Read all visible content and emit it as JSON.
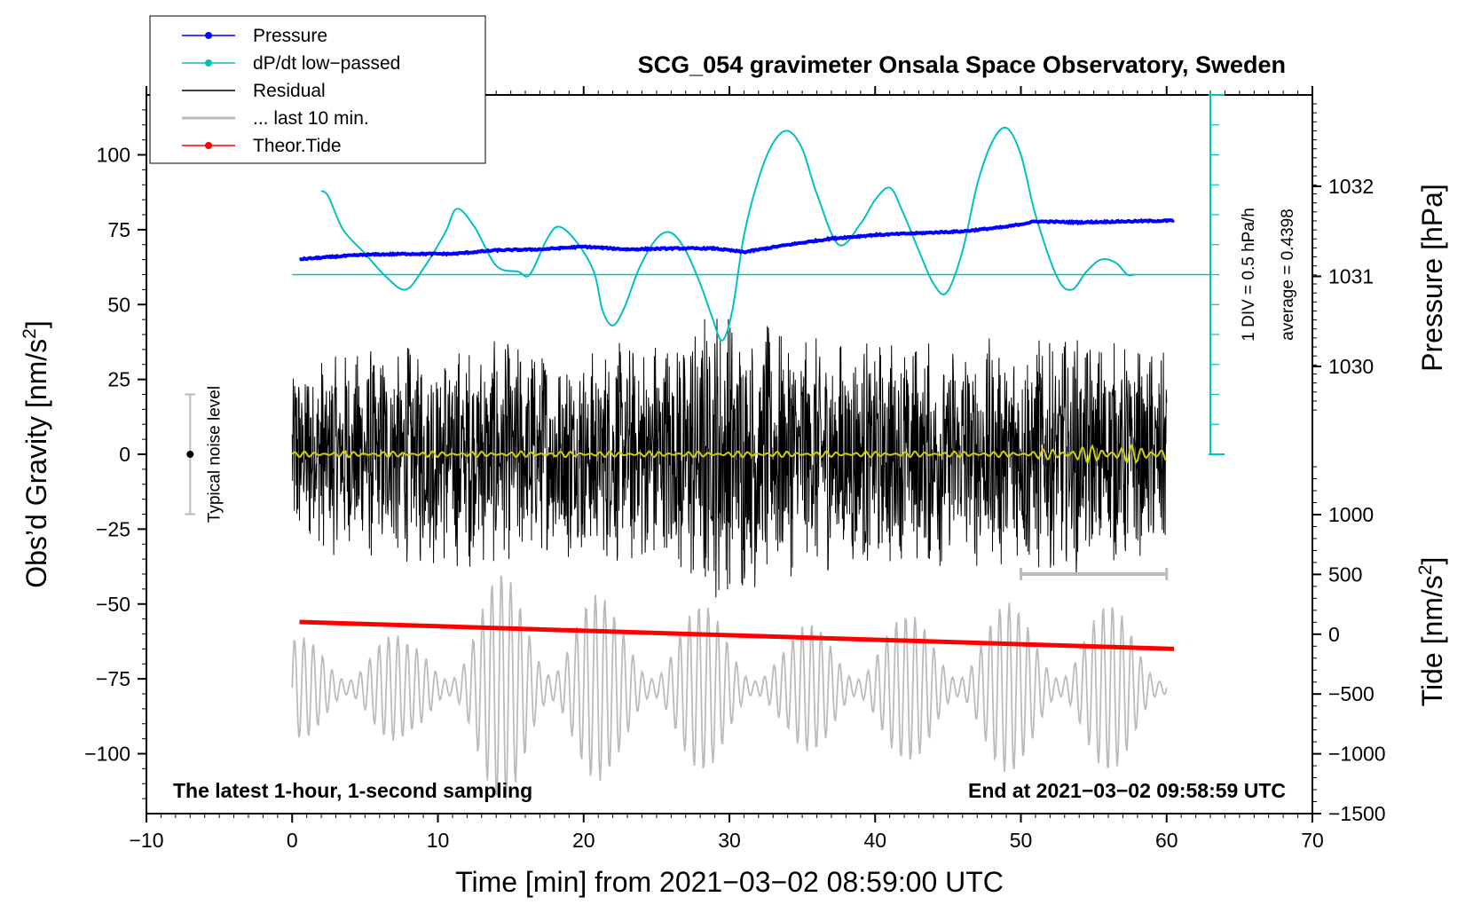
{
  "chart_data": {
    "type": "line",
    "title": "SCG_054 gravimeter Onsala Space Observatory, Sweden",
    "xlabel": "Time [min] from 2021−03−02 08:59:00 UTC",
    "ylabel_left": "Obs’d Gravity [nm/s",
    "ylabel_left_sup": "2",
    "ylabel_left_end": "]",
    "ylabel_right_pressure": "Pressure [hPa]",
    "ylabel_right_tide": "Tide [nm/s",
    "ylabel_right_tide_sup": "2",
    "ylabel_right_tide_end": "]",
    "xlim": [
      -10,
      70
    ],
    "ylim": [
      -120,
      120
    ],
    "pressure_ylim": [
      1029,
      1033
    ],
    "tide_ylim": [
      -1500,
      1500
    ],
    "x_ticks": [
      -10,
      0,
      10,
      20,
      30,
      40,
      50,
      60,
      70
    ],
    "x_tick_labels": [
      "−10",
      "0",
      "10",
      "20",
      "30",
      "40",
      "50",
      "60",
      "70"
    ],
    "y_ticks": [
      100,
      75,
      50,
      25,
      0,
      -25,
      -50,
      -75,
      -100
    ],
    "y_tick_labels": [
      "100",
      "75",
      "50",
      "25",
      "0",
      "−25",
      "−50",
      "−75",
      "−100"
    ],
    "pressure_ticks": [
      1032,
      1031,
      1030
    ],
    "pressure_tick_labels": [
      "1032",
      "1031",
      "1030"
    ],
    "tide_ticks": [
      1000,
      500,
      0,
      -500,
      -1000,
      -1500
    ],
    "tide_tick_labels": [
      "1000",
      "500",
      "0",
      "−500",
      "−1000",
      "−1500"
    ],
    "note_left": "The latest 1-hour, 1-second sampling",
    "note_right": "End at 2021−03−02 09:58:59 UTC",
    "noise": {
      "label": "Typical noise level",
      "x": -7,
      "center": 0,
      "half_range": 20
    },
    "scale_bar": {
      "line1": "1 DIV = 0.5 hPa/h",
      "line2": "average = 0.4398",
      "x": 63,
      "top_gravity": 120,
      "bottom_gravity": 0,
      "divisions": 12
    },
    "last10_bar": {
      "x_start": 50,
      "x_end": 60,
      "y": -40
    },
    "legend": [
      {
        "name": "Pressure",
        "color": "#0000ff",
        "marker": true
      },
      {
        "name": "dP/dt low−passed",
        "color": "#00c0c0",
        "marker": true
      },
      {
        "name": "Residual",
        "color": "#000000",
        "marker": false
      },
      {
        "name": "... last 10 min.",
        "color": "#bbbbbb",
        "marker": false
      },
      {
        "name": "Theor.Tide",
        "color": "#ff0000",
        "marker": true
      }
    ],
    "series": [
      {
        "name": "Pressure",
        "axis": "pressure",
        "color": "#0000ff",
        "x": [
          0.5,
          3,
          5,
          8,
          11,
          14,
          17,
          20,
          23,
          26,
          29,
          31,
          34,
          37,
          40,
          43,
          46,
          49,
          51,
          54,
          57,
          60.5
        ],
        "y": [
          1031.19,
          1031.22,
          1031.24,
          1031.25,
          1031.25,
          1031.29,
          1031.3,
          1031.33,
          1031.3,
          1031.31,
          1031.31,
          1031.27,
          1031.35,
          1031.42,
          1031.46,
          1031.48,
          1031.5,
          1031.55,
          1031.61,
          1031.6,
          1031.61,
          1031.62
        ]
      },
      {
        "name": "dP/dt low−passed",
        "axis": "gravity",
        "color": "#00c0c0",
        "x": [
          2,
          2.5,
          3.5,
          5,
          6.5,
          7.8,
          9,
          10.5,
          11.3,
          12.5,
          14,
          15.5,
          16.3,
          17.5,
          18.3,
          19.5,
          20.7,
          21.3,
          22,
          22.8,
          23.8,
          25,
          26,
          27,
          28,
          28.8,
          29.5,
          30.2,
          31,
          32,
          33,
          34,
          35,
          36,
          37.5,
          39,
          40,
          41,
          41.8,
          43,
          44,
          44.9,
          46,
          47,
          48,
          49,
          50,
          51,
          52.5,
          53.5,
          54.5,
          55.5,
          56.5,
          57.3,
          57.8
        ],
        "y": [
          88,
          86,
          75,
          67,
          59,
          55,
          62,
          74,
          82,
          76,
          63,
          61,
          60,
          72,
          76,
          71,
          61,
          48,
          43,
          49,
          62,
          72,
          74,
          68,
          57,
          46,
          38,
          48,
          73,
          92,
          104,
          108,
          102,
          87,
          70,
          77,
          85,
          89,
          82,
          68,
          57,
          54,
          68,
          90,
          104,
          109,
          100,
          80,
          59,
          55,
          61,
          65,
          64,
          60,
          60
        ]
      },
      {
        "name": "dP/dt zero line",
        "axis": "gravity",
        "color": "#00c0c0",
        "x": [
          0,
          63
        ],
        "y": [
          60,
          60
        ]
      },
      {
        "name": "Residual",
        "axis": "gravity",
        "color": "#000000",
        "x_range": [
          0,
          60
        ],
        "amplitude_envelope_x": [
          0,
          5,
          10,
          15,
          20,
          25,
          29.5,
          30.5,
          35,
          40,
          45,
          50,
          55,
          60
        ],
        "amplitude_envelope_y": [
          32,
          36,
          38,
          38,
          36,
          40,
          52,
          48,
          40,
          40,
          38,
          40,
          40,
          34
        ]
      },
      {
        "name": "Residual low−passed",
        "axis": "gravity",
        "color": "#d0d000",
        "x_range": [
          0,
          60
        ],
        "amplitude_envelope_x": [
          0,
          50,
          52,
          55,
          60
        ],
        "amplitude_envelope_y": [
          1,
          1,
          2,
          3,
          3
        ]
      },
      {
        "name": "... last 10 min.",
        "axis": "gravity",
        "color": "#bbbbbb",
        "x_range": [
          0,
          60
        ],
        "center": -78,
        "amplitude_envelope_x": [
          0,
          4,
          8,
          14,
          18,
          22,
          26,
          30,
          34,
          38,
          42,
          46,
          50,
          54,
          58,
          60
        ],
        "amplitude_envelope_y": [
          16,
          24,
          16,
          38,
          42,
          28,
          30,
          26,
          18,
          28,
          24,
          30,
          28,
          30,
          26,
          20
        ]
      },
      {
        "name": "Theor.Tide",
        "axis": "gravity",
        "color": "#ff0000",
        "x": [
          0.5,
          60.5
        ],
        "y": [
          -56,
          -65
        ]
      }
    ]
  }
}
